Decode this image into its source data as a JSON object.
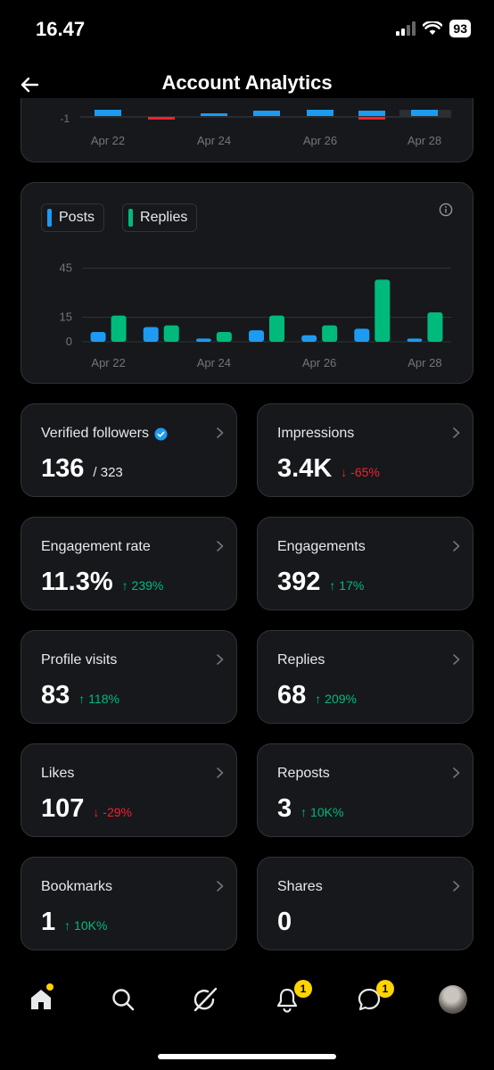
{
  "status_bar": {
    "time": "16.47",
    "battery": "93"
  },
  "header": {
    "title": "Account Analytics"
  },
  "top_chart": {
    "tick_label": "-1",
    "x_labels": [
      "Apr 22",
      "Apr 24",
      "Apr 26",
      "Apr 28"
    ]
  },
  "legend": {
    "posts": "Posts",
    "replies": "Replies"
  },
  "colors": {
    "posts": "#1d9bf0",
    "replies": "#00ba7c",
    "negative": "#f4212e",
    "card_bg": "#16181c",
    "border": "#2f3336"
  },
  "chart_data": {
    "type": "bar",
    "categories": [
      "Apr 22",
      "Apr 23",
      "Apr 24",
      "Apr 25",
      "Apr 26",
      "Apr 27",
      "Apr 28"
    ],
    "x_tick_labels": [
      "Apr 22",
      "Apr 24",
      "Apr 26",
      "Apr 28"
    ],
    "y_tick_labels": [
      "45",
      "15",
      "0"
    ],
    "y_ticks": [
      45,
      15,
      0
    ],
    "ylim": [
      0,
      48
    ],
    "grid": true,
    "legend_position": "top-left",
    "series": [
      {
        "name": "Posts",
        "color": "#1d9bf0",
        "values": [
          6,
          9,
          2,
          7,
          4,
          8,
          2
        ]
      },
      {
        "name": "Replies",
        "color": "#00ba7c",
        "values": [
          16,
          10,
          6,
          16,
          10,
          38,
          18
        ]
      }
    ]
  },
  "stats": [
    {
      "label": "Verified followers",
      "value": "136",
      "sub": "/ 323",
      "verified": true
    },
    {
      "label": "Impressions",
      "value": "3.4K",
      "delta": "↓ -65%",
      "dir": "down"
    },
    {
      "label": "Engagement rate",
      "value": "11.3%",
      "delta": "↑ 239%",
      "dir": "up"
    },
    {
      "label": "Engagements",
      "value": "392",
      "delta": "↑ 17%",
      "dir": "up"
    },
    {
      "label": "Profile visits",
      "value": "83",
      "delta": "↑ 118%",
      "dir": "up"
    },
    {
      "label": "Replies",
      "value": "68",
      "delta": "↑ 209%",
      "dir": "up"
    },
    {
      "label": "Likes",
      "value": "107",
      "delta": "↓ -29%",
      "dir": "down"
    },
    {
      "label": "Reposts",
      "value": "3",
      "delta": "↑ 10K%",
      "dir": "up"
    },
    {
      "label": "Bookmarks",
      "value": "1",
      "delta": "↑ 10K%",
      "dir": "up"
    },
    {
      "label": "Shares",
      "value": "0"
    }
  ],
  "tabbar": {
    "items": [
      "home-icon",
      "search-icon",
      "grok-icon",
      "bell-icon",
      "messages-icon",
      "profile-avatar"
    ],
    "notifications_badge": "1",
    "messages_badge": "1"
  }
}
